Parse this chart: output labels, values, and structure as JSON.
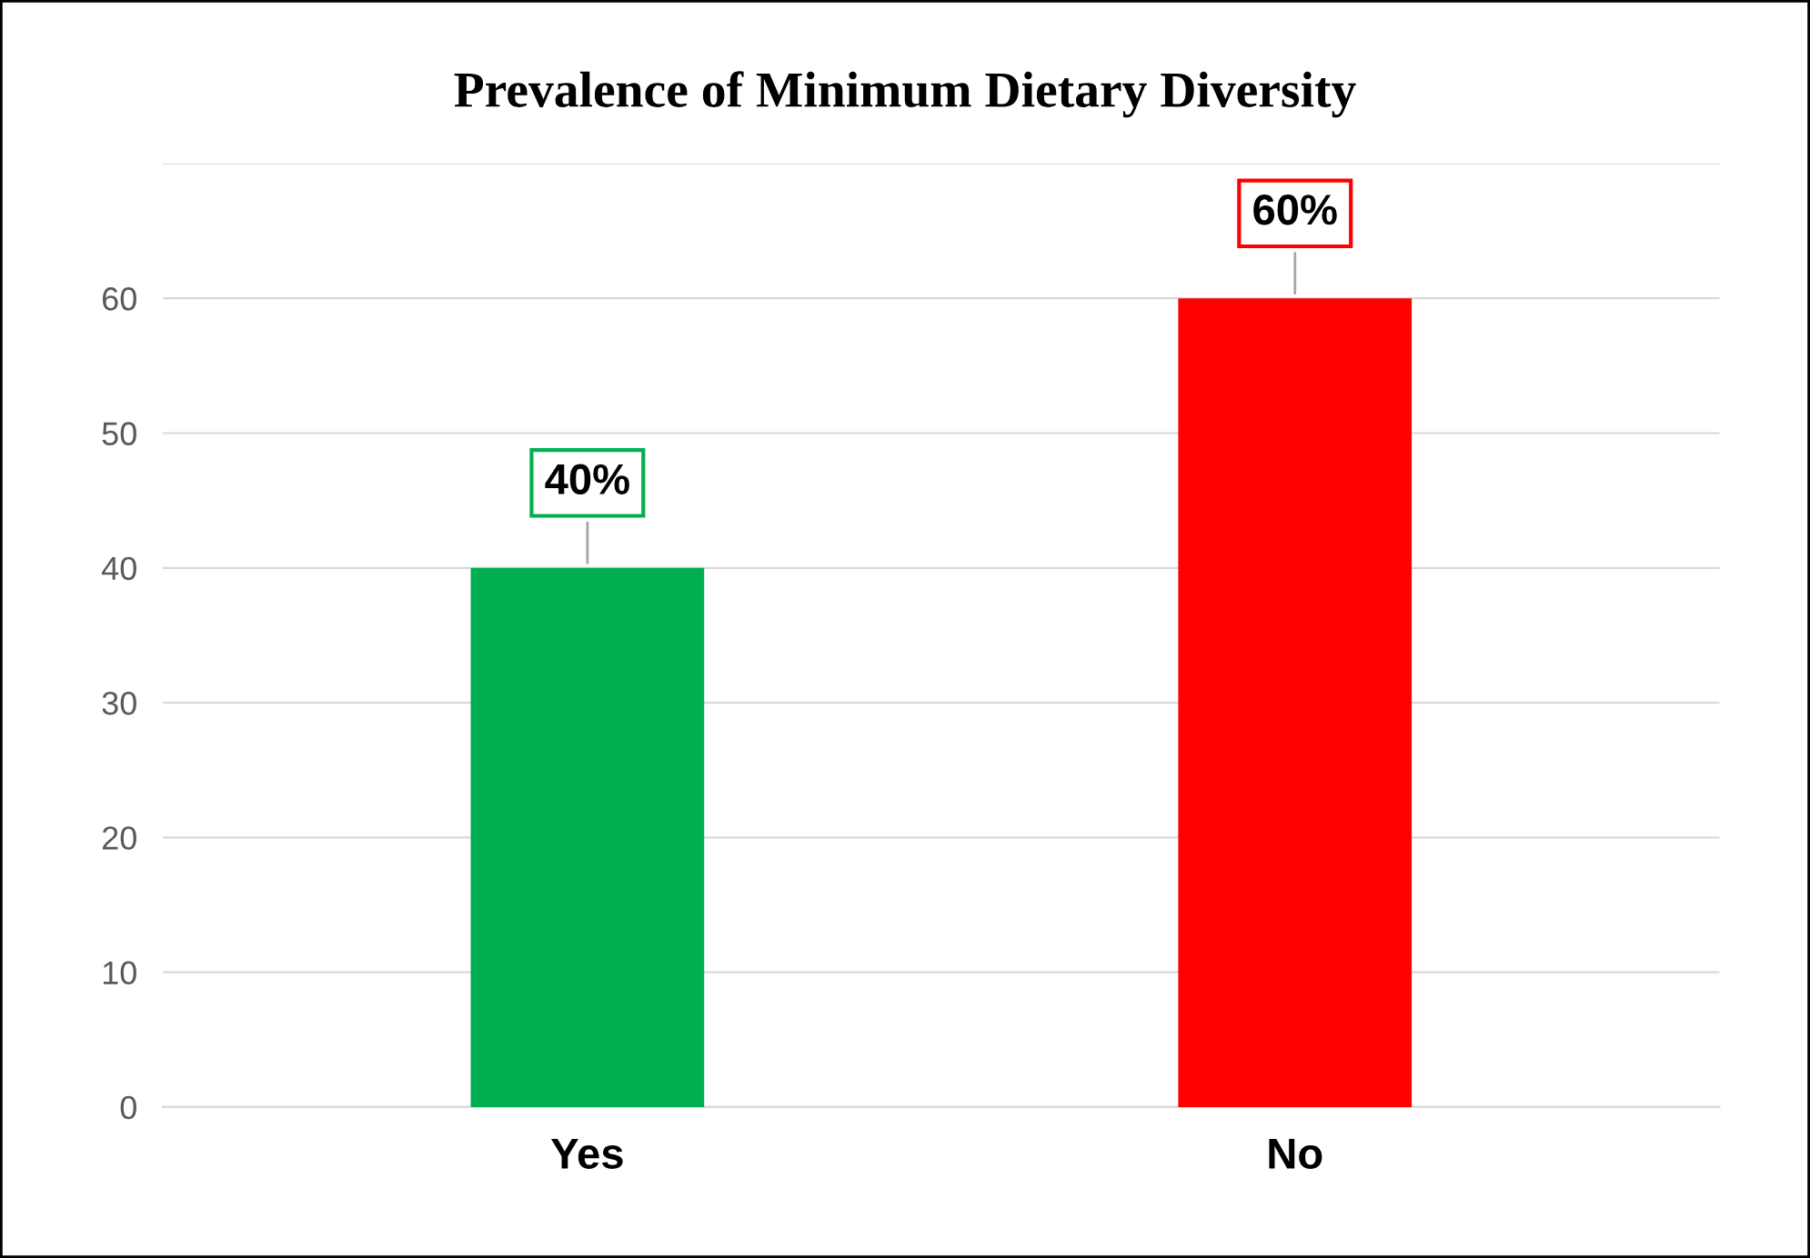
{
  "chart_data": {
    "type": "bar",
    "title": "Prevalence of Minimum Dietary Diversity",
    "categories": [
      "Yes",
      "No"
    ],
    "values": [
      40,
      60
    ],
    "colors": [
      "#00b050",
      "#ff0000"
    ],
    "value_labels": [
      "40%",
      "60%"
    ],
    "ylim": [
      0,
      70
    ],
    "yticks": [
      0,
      10,
      20,
      30,
      40,
      50,
      60,
      {
        "value": 70,
        "label": null
      }
    ],
    "grid": "y"
  }
}
